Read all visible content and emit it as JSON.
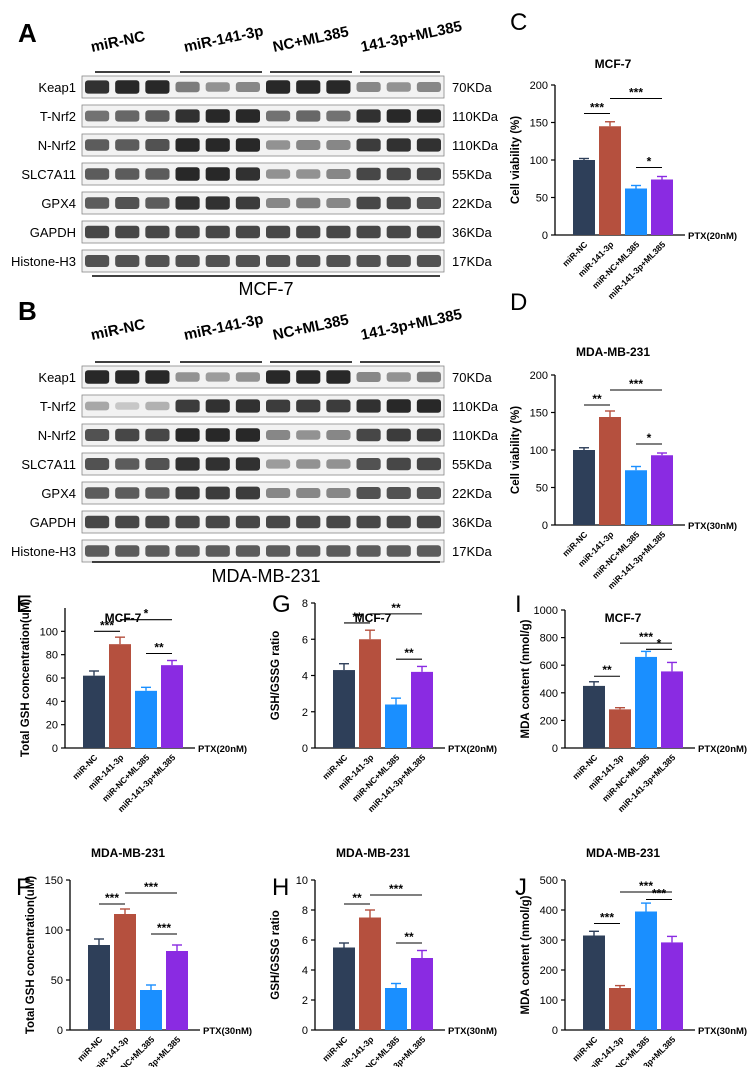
{
  "colors": {
    "navy": "#2e3f59",
    "brick": "#b5503e",
    "sky": "#1a8fff",
    "violet": "#8a2be2",
    "blot_bg": "#f2f2f2",
    "band": "#1c1c1c"
  },
  "western_blots": [
    {
      "id": "A",
      "panel_letter": "A",
      "cell_line": "MCF-7",
      "group_labels": [
        "miR-NC",
        "miR-141-3p",
        "NC+ML385",
        "141-3p+ML385"
      ],
      "rows": [
        {
          "protein": "Keap1",
          "size": "70KDa",
          "intensity": [
            0.9,
            0.95,
            0.95,
            0.55,
            0.45,
            0.5,
            0.95,
            0.95,
            0.95,
            0.5,
            0.45,
            0.5
          ]
        },
        {
          "protein": "T-Nrf2",
          "size": "110KDa",
          "intensity": [
            0.6,
            0.65,
            0.7,
            0.9,
            0.95,
            0.95,
            0.6,
            0.65,
            0.6,
            0.9,
            0.95,
            0.95
          ]
        },
        {
          "protein": "N-Nrf2",
          "size": "110KDa",
          "intensity": [
            0.7,
            0.7,
            0.75,
            0.95,
            0.95,
            0.95,
            0.45,
            0.5,
            0.5,
            0.85,
            0.9,
            0.9
          ]
        },
        {
          "protein": "SLC7A11",
          "size": "55KDa",
          "intensity": [
            0.7,
            0.7,
            0.7,
            0.95,
            0.95,
            0.9,
            0.45,
            0.45,
            0.5,
            0.8,
            0.8,
            0.8
          ]
        },
        {
          "protein": "GPX4",
          "size": "22KDa",
          "intensity": [
            0.7,
            0.75,
            0.7,
            0.9,
            0.9,
            0.85,
            0.5,
            0.55,
            0.5,
            0.8,
            0.8,
            0.75
          ]
        },
        {
          "protein": "GAPDH",
          "size": "36KDa",
          "intensity": [
            0.8,
            0.8,
            0.8,
            0.8,
            0.8,
            0.8,
            0.8,
            0.8,
            0.8,
            0.8,
            0.8,
            0.8
          ]
        },
        {
          "protein": "Histone-H3",
          "size": "17KDa",
          "intensity": [
            0.75,
            0.75,
            0.75,
            0.75,
            0.75,
            0.75,
            0.75,
            0.75,
            0.75,
            0.75,
            0.75,
            0.75
          ]
        }
      ]
    },
    {
      "id": "B",
      "panel_letter": "B",
      "cell_line": "MDA-MB-231",
      "group_labels": [
        "miR-NC",
        "miR-141-3p",
        "NC+ML385",
        "141-3p+ML385"
      ],
      "rows": [
        {
          "protein": "Keap1",
          "size": "70KDa",
          "intensity": [
            0.95,
            0.95,
            0.95,
            0.45,
            0.4,
            0.45,
            0.95,
            0.95,
            0.95,
            0.5,
            0.45,
            0.55
          ]
        },
        {
          "protein": "T-Nrf2",
          "size": "110KDa",
          "intensity": [
            0.35,
            0.2,
            0.3,
            0.85,
            0.9,
            0.9,
            0.85,
            0.85,
            0.85,
            0.9,
            0.95,
            0.95
          ]
        },
        {
          "protein": "N-Nrf2",
          "size": "110KDa",
          "intensity": [
            0.75,
            0.8,
            0.8,
            0.95,
            0.95,
            0.95,
            0.5,
            0.45,
            0.5,
            0.8,
            0.85,
            0.85
          ]
        },
        {
          "protein": "SLC7A11",
          "size": "55KDa",
          "intensity": [
            0.75,
            0.7,
            0.75,
            0.9,
            0.9,
            0.9,
            0.4,
            0.45,
            0.45,
            0.75,
            0.8,
            0.8
          ]
        },
        {
          "protein": "GPX4",
          "size": "22KDa",
          "intensity": [
            0.7,
            0.7,
            0.7,
            0.85,
            0.85,
            0.85,
            0.5,
            0.5,
            0.5,
            0.75,
            0.75,
            0.75
          ]
        },
        {
          "protein": "GAPDH",
          "size": "36KDa",
          "intensity": [
            0.8,
            0.8,
            0.8,
            0.8,
            0.8,
            0.8,
            0.8,
            0.8,
            0.8,
            0.8,
            0.8,
            0.8
          ]
        },
        {
          "protein": "Histone-H3",
          "size": "17KDa",
          "intensity": [
            0.7,
            0.7,
            0.7,
            0.7,
            0.7,
            0.7,
            0.7,
            0.7,
            0.7,
            0.7,
            0.7,
            0.7
          ]
        }
      ]
    }
  ],
  "chart_data": [
    {
      "id": "C",
      "panel_letter": "C",
      "type": "bar",
      "title": "MCF-7",
      "ylabel": "Cell viability (%)",
      "xlabel": "",
      "ylim": [
        0,
        200
      ],
      "yticks": [
        0,
        50,
        100,
        150,
        200
      ],
      "categories": [
        "miR-NC",
        "miR-141-3p",
        "miR-NC+ML385",
        "miR-141-3p+ML385"
      ],
      "values": [
        100,
        145,
        62,
        74
      ],
      "errors": [
        2,
        6,
        4,
        4
      ],
      "treatment": "PTX(20nM)",
      "significance": [
        {
          "from": 0,
          "to": 1,
          "label": "***",
          "y": 162
        },
        {
          "from": 1,
          "to": 3,
          "label": "***",
          "y": 182
        },
        {
          "from": 2,
          "to": 3,
          "label": "*",
          "y": 90
        }
      ]
    },
    {
      "id": "D",
      "panel_letter": "D",
      "type": "bar",
      "title": "MDA-MB-231",
      "ylabel": "Cell viability (%)",
      "xlabel": "",
      "ylim": [
        0,
        200
      ],
      "yticks": [
        0,
        50,
        100,
        150,
        200
      ],
      "categories": [
        "miR-NC",
        "miR-141-3p",
        "miR-NC+ML385",
        "miR-141-3p+ML385"
      ],
      "values": [
        100,
        144,
        73,
        93
      ],
      "errors": [
        3,
        8,
        5,
        3
      ],
      "treatment": "PTX(30nM)",
      "significance": [
        {
          "from": 0,
          "to": 1,
          "label": "**",
          "y": 160
        },
        {
          "from": 1,
          "to": 3,
          "label": "***",
          "y": 180
        },
        {
          "from": 2,
          "to": 3,
          "label": "*",
          "y": 108
        }
      ]
    },
    {
      "id": "E",
      "panel_letter": "E",
      "type": "bar",
      "title": "MCF-7",
      "ylabel": "Total GSH concentration(uM)",
      "xlabel": "",
      "ylim": [
        0,
        120
      ],
      "yticks": [
        0,
        20,
        40,
        60,
        80,
        100
      ],
      "categories": [
        "miR-NC",
        "miR-141-3p",
        "miR-NC+ML385",
        "miR-141-3p+ML385"
      ],
      "values": [
        62,
        89,
        49,
        71
      ],
      "errors": [
        4,
        6,
        3,
        4
      ],
      "treatment": "PTX(20nM)",
      "significance": [
        {
          "from": 0,
          "to": 1,
          "label": "***",
          "y": 100
        },
        {
          "from": 1,
          "to": 3,
          "label": "*",
          "y": 110
        },
        {
          "from": 2,
          "to": 3,
          "label": "**",
          "y": 81
        }
      ]
    },
    {
      "id": "G",
      "panel_letter": "G",
      "type": "bar",
      "title": "MCF-7",
      "ylabel": "GSH/GSSG ratio",
      "xlabel": "",
      "ylim": [
        0,
        8
      ],
      "yticks": [
        0,
        2,
        4,
        6,
        8
      ],
      "categories": [
        "miR-NC",
        "miR-141-3p",
        "miR-NC+ML385",
        "miR-141-3p+ML385"
      ],
      "values": [
        4.3,
        6.0,
        2.4,
        4.2
      ],
      "errors": [
        0.35,
        0.5,
        0.35,
        0.3
      ],
      "treatment": "PTX(20nM)",
      "significance": [
        {
          "from": 0,
          "to": 1,
          "label": "**",
          "y": 6.9
        },
        {
          "from": 1,
          "to": 3,
          "label": "**",
          "y": 7.4
        },
        {
          "from": 2,
          "to": 3,
          "label": "**",
          "y": 4.9
        }
      ]
    },
    {
      "id": "I",
      "panel_letter": "I",
      "type": "bar",
      "title": "MCF-7",
      "ylabel": "MDA content (nmol/g)",
      "xlabel": "",
      "ylim": [
        0,
        1000
      ],
      "yticks": [
        0,
        200,
        400,
        600,
        800,
        1000
      ],
      "categories": [
        "miR-NC",
        "miR-141-3p",
        "miR-NC+ML385",
        "miR-141-3p+ML385"
      ],
      "values": [
        450,
        280,
        660,
        555
      ],
      "errors": [
        30,
        12,
        40,
        65
      ],
      "treatment": "PTX(20nM)",
      "significance": [
        {
          "from": 0,
          "to": 1,
          "label": "**",
          "y": 520
        },
        {
          "from": 1,
          "to": 3,
          "label": "***",
          "y": 760
        },
        {
          "from": 2,
          "to": 3,
          "label": "*",
          "y": 715
        }
      ]
    },
    {
      "id": "F",
      "panel_letter": "F",
      "type": "bar",
      "title": "MDA-MB-231",
      "ylabel": "Total GSH concentration(uM)",
      "xlabel": "",
      "ylim": [
        0,
        150
      ],
      "yticks": [
        0,
        50,
        100,
        150
      ],
      "categories": [
        "miR-NC",
        "miR-141-3p",
        "miR-NC+ML385",
        "miR-141-3p+ML385"
      ],
      "values": [
        85,
        116,
        40,
        79
      ],
      "errors": [
        6,
        5,
        5,
        6
      ],
      "treatment": "PTX(30nM)",
      "significance": [
        {
          "from": 0,
          "to": 1,
          "label": "***",
          "y": 126
        },
        {
          "from": 1,
          "to": 3,
          "label": "***",
          "y": 137
        },
        {
          "from": 2,
          "to": 3,
          "label": "***",
          "y": 96
        }
      ]
    },
    {
      "id": "H",
      "panel_letter": "H",
      "type": "bar",
      "title": "MDA-MB-231",
      "ylabel": "GSH/GSSG ratio",
      "xlabel": "",
      "ylim": [
        0,
        10
      ],
      "yticks": [
        0,
        2,
        4,
        6,
        8,
        10
      ],
      "categories": [
        "miR-NC",
        "miR-141-3p",
        "miR-NC+ML385",
        "miR-141-3p+ML385"
      ],
      "values": [
        5.5,
        7.5,
        2.8,
        4.8
      ],
      "errors": [
        0.3,
        0.5,
        0.3,
        0.5
      ],
      "treatment": "PTX(30nM)",
      "significance": [
        {
          "from": 0,
          "to": 1,
          "label": "**",
          "y": 8.4
        },
        {
          "from": 1,
          "to": 3,
          "label": "***",
          "y": 9.0
        },
        {
          "from": 2,
          "to": 3,
          "label": "**",
          "y": 5.8
        }
      ]
    },
    {
      "id": "J",
      "panel_letter": "J",
      "type": "bar",
      "title": "MDA-MB-231",
      "ylabel": "MDA content (nmol/g)",
      "xlabel": "",
      "ylim": [
        0,
        500
      ],
      "yticks": [
        0,
        100,
        200,
        300,
        400,
        500
      ],
      "categories": [
        "miR-NC",
        "miR-141-3p",
        "miR-NC+ML385",
        "miR-141-3p+ML385"
      ],
      "values": [
        315,
        140,
        395,
        292
      ],
      "errors": [
        14,
        8,
        28,
        20
      ],
      "treatment": "PTX(30nM)",
      "significance": [
        {
          "from": 0,
          "to": 1,
          "label": "***",
          "y": 355
        },
        {
          "from": 1,
          "to": 3,
          "label": "***",
          "y": 460
        },
        {
          "from": 2,
          "to": 3,
          "label": "***",
          "y": 435
        }
      ]
    }
  ]
}
